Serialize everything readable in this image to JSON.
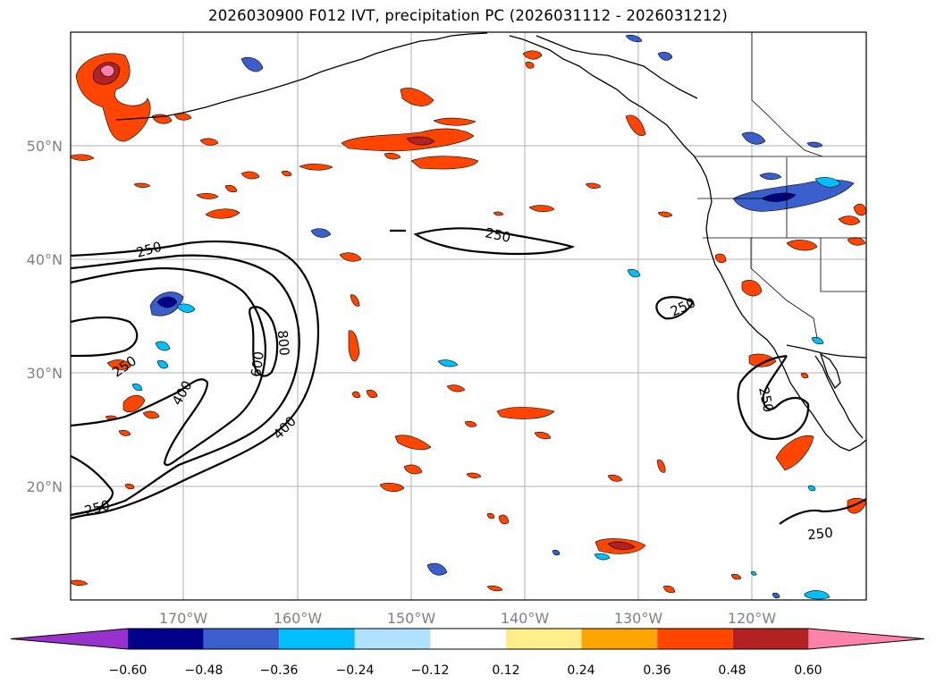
{
  "title": "2026030900 F012 IVT, precipitation PC (2026031112 - 2026031212)",
  "axes": {
    "lon_ticks": [
      "170°W",
      "160°W",
      "150°W",
      "140°W",
      "130°W",
      "120°W"
    ],
    "lat_ticks": [
      "50°N",
      "40°N",
      "30°N",
      "20°N"
    ],
    "lon_range": [
      -180,
      -110
    ],
    "lat_range": [
      10,
      60
    ]
  },
  "colorbar": {
    "ticks": [
      "−0.60",
      "−0.48",
      "−0.36",
      "−0.24",
      "−0.12",
      "0.12",
      "0.24",
      "0.36",
      "0.48",
      "0.60"
    ],
    "bins": [
      {
        "label": "< -0.60",
        "color": "#9932cc"
      },
      {
        "label": "-0.60 to -0.48",
        "color": "#00008b"
      },
      {
        "label": "-0.48 to -0.36",
        "color": "#3a5fcd"
      },
      {
        "label": "-0.36 to -0.24",
        "color": "#00bfff"
      },
      {
        "label": "-0.24 to -0.12",
        "color": "#b0e2ff"
      },
      {
        "label": "-0.12 to 0.12",
        "color": "#ffffff"
      },
      {
        "label": "0.12 to 0.24",
        "color": "#ffec8b"
      },
      {
        "label": "0.24 to 0.36",
        "color": "#ffa500"
      },
      {
        "label": "0.36 to 0.48",
        "color": "#ff4500"
      },
      {
        "label": "0.48 to 0.60",
        "color": "#b22222"
      },
      {
        "label": "> 0.60",
        "color": "#ff82ab"
      }
    ]
  },
  "ivt_contour_labels": [
    "250",
    "250",
    "250",
    "250",
    "250",
    "250",
    "400",
    "400",
    "600",
    "800"
  ],
  "chart_data": {
    "type": "map",
    "title": "2026030900 F012 IVT, precipitation PC (2026031112 - 2026031212)",
    "variables": [
      "IVT contours (250, 400, 600, 800)",
      "precipitation PC (filled)"
    ],
    "ivt_contour_levels": [
      250,
      400,
      600,
      800
    ],
    "colorbar_levels": [
      -0.6,
      -0.48,
      -0.36,
      -0.24,
      -0.12,
      0.12,
      0.24,
      0.36,
      0.48,
      0.6
    ],
    "extent": {
      "lon": [
        -180,
        -110
      ],
      "lat": [
        10,
        60
      ]
    }
  }
}
